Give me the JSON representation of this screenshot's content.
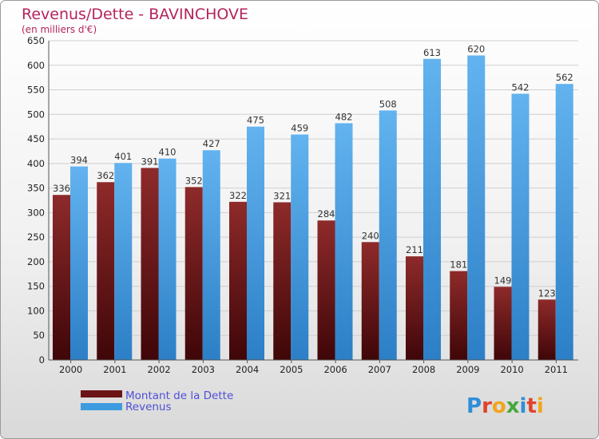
{
  "chart_data": {
    "type": "bar",
    "title": "Revenus/Dette - BAVINCHOVE",
    "subtitle": "(en milliers d'€)",
    "categories": [
      "2000",
      "2001",
      "2002",
      "2003",
      "2004",
      "2005",
      "2006",
      "2007",
      "2008",
      "2009",
      "2010",
      "2011"
    ],
    "series": [
      {
        "name": "Montant de la Dette",
        "color": "#7a1a1c",
        "values": [
          336,
          362,
          391,
          352,
          322,
          321,
          284,
          240,
          211,
          181,
          149,
          123
        ]
      },
      {
        "name": "Revenus",
        "color": "#3f9be0",
        "values": [
          394,
          401,
          410,
          427,
          475,
          459,
          482,
          508,
          613,
          620,
          542,
          562
        ]
      }
    ],
    "ylim": [
      0,
      650
    ],
    "yticks": [
      0,
      50,
      100,
      150,
      200,
      250,
      300,
      350,
      400,
      450,
      500,
      550,
      600,
      650
    ],
    "grid": true,
    "legend_position": "bottom-left"
  },
  "logo": {
    "text": "Proxiti"
  }
}
